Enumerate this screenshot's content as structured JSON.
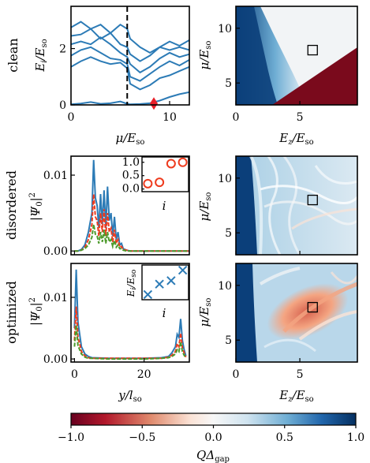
{
  "colors": {
    "blue": "#2c7bb6",
    "red": "#ee3b1e",
    "green": "#4c9a2a",
    "cmap_neg": "#67001f",
    "cmap_mid": "#f7f7f7",
    "cmap_pos": "#053061"
  },
  "rows": {
    "clean": "clean",
    "disordered": "disordered",
    "optimized": "optimized"
  },
  "chart_data": [
    {
      "id": "clean-spectrum",
      "type": "line",
      "xlabel": "μ/E_so",
      "ylabel": "E_i/E_so",
      "xlim": [
        0,
        12
      ],
      "ylim": [
        0,
        3.5
      ],
      "xticks": [
        "0",
        "10"
      ],
      "yticks": [
        "0",
        "2"
      ],
      "vline_x": 5.7,
      "marker_diamond": {
        "x": 8.4,
        "y": 0.05
      },
      "x": [
        0,
        1,
        2,
        3,
        4,
        5,
        5.7,
        6,
        7,
        8,
        9,
        10,
        11,
        12
      ],
      "series": [
        {
          "values": [
            2.75,
            2.95,
            2.7,
            2.35,
            2.55,
            2.85,
            2.7,
            2.35,
            2.05,
            1.85,
            2.05,
            2.25,
            2.1,
            2.3
          ]
        },
        {
          "values": [
            2.45,
            2.5,
            2.7,
            2.85,
            2.55,
            2.15,
            2.05,
            1.8,
            1.55,
            1.75,
            2.05,
            1.95,
            2.05,
            1.95
          ]
        },
        {
          "values": [
            2.15,
            2.25,
            2.15,
            2.4,
            2.15,
            1.85,
            1.7,
            1.45,
            1.15,
            1.35,
            1.65,
            1.85,
            1.7,
            1.8
          ]
        },
        {
          "values": [
            1.75,
            1.95,
            2.05,
            1.85,
            1.65,
            1.6,
            1.45,
            1.0,
            0.85,
            1.1,
            1.35,
            1.55,
            1.4,
            1.6
          ]
        },
        {
          "values": [
            1.35,
            1.55,
            1.7,
            1.55,
            1.45,
            1.5,
            1.3,
            0.75,
            0.55,
            0.7,
            0.95,
            1.05,
            1.2,
            1.35
          ]
        },
        {
          "values": [
            0.02,
            0.05,
            0.1,
            0.04,
            0.06,
            0.12,
            0.04,
            0.02,
            0.03,
            0.06,
            0.15,
            0.28,
            0.38,
            0.45
          ]
        }
      ]
    },
    {
      "id": "clean-map",
      "type": "heatmap",
      "xlabel": "E_z/E_so",
      "ylabel": "μ/E_so",
      "xlim": [
        0,
        9.5
      ],
      "ylim": [
        3,
        12
      ],
      "xticks": [
        "0",
        "5"
      ],
      "yticks": [
        "5",
        "10"
      ],
      "square_marker": {
        "x": 6,
        "y": 8
      }
    },
    {
      "id": "disordered-wavefunction",
      "type": "line",
      "ylabel": "|Ψ_0|²",
      "xlim": [
        -1,
        33
      ],
      "ylim": [
        -0.0005,
        0.0125
      ],
      "yticks": [
        "0.00",
        "0.01"
      ],
      "x": [
        0,
        1,
        2,
        3,
        4,
        5,
        5.5,
        6,
        6.5,
        7,
        7.5,
        8,
        8.5,
        9,
        9.5,
        10,
        10.5,
        11,
        11.5,
        12,
        12.5,
        13,
        13.5,
        14,
        15,
        16,
        17,
        18,
        20,
        25,
        30,
        33
      ],
      "series": [
        {
          "values": [
            0,
            0,
            0.0002,
            0.0008,
            0.0025,
            0.005,
            0.012,
            0.007,
            0.006,
            0.003,
            0.0075,
            0.0035,
            0.008,
            0.003,
            0.0085,
            0.004,
            0.005,
            0.002,
            0.0045,
            0.0015,
            0.0025,
            0.0008,
            0.001,
            0.0003,
            0.0001,
            0,
            0,
            0,
            0,
            0,
            0,
            0
          ]
        },
        {
          "values": [
            0,
            0,
            0.0001,
            0.0005,
            0.0015,
            0.0035,
            0.0075,
            0.0045,
            0.004,
            0.002,
            0.005,
            0.0025,
            0.0055,
            0.002,
            0.005,
            0.0025,
            0.003,
            0.0012,
            0.0028,
            0.001,
            0.0015,
            0.0005,
            0.0006,
            0.0002,
            0.0001,
            0,
            0,
            0,
            0,
            0,
            0,
            0
          ]
        },
        {
          "values": [
            0,
            0,
            0.0001,
            0.0003,
            0.0008,
            0.0018,
            0.0035,
            0.0022,
            0.002,
            0.001,
            0.0025,
            0.0012,
            0.0028,
            0.001,
            0.0025,
            0.0012,
            0.0015,
            0.0006,
            0.0014,
            0.0005,
            0.0008,
            0.0003,
            0.0003,
            0.0001,
            0,
            0,
            0,
            0,
            0,
            0,
            0,
            0
          ]
        }
      ],
      "inset": {
        "xlabel": "i",
        "yticks": [
          "0.0",
          "0.5",
          "1.0"
        ],
        "ylim": [
          -0.1,
          1.2
        ],
        "points": [
          {
            "x": 1,
            "y": 0.2
          },
          {
            "x": 2,
            "y": 0.25
          },
          {
            "x": 3,
            "y": 0.95
          },
          {
            "x": 4,
            "y": 1.0
          }
        ]
      }
    },
    {
      "id": "disordered-map",
      "type": "heatmap",
      "ylabel": "μ/E_so",
      "xlim": [
        0,
        9.5
      ],
      "ylim": [
        3,
        12
      ],
      "yticks": [
        "5",
        "10"
      ],
      "square_marker": {
        "x": 6,
        "y": 8
      }
    },
    {
      "id": "optimized-wavefunction",
      "type": "line",
      "xlabel": "y/l_so",
      "ylabel": "|Ψ_0|²",
      "xlim": [
        -1,
        33
      ],
      "ylim": [
        -0.0005,
        0.0155
      ],
      "xticks": [
        "0",
        "20"
      ],
      "yticks": [
        "0.00",
        "0.01"
      ],
      "x": [
        0,
        0.5,
        1,
        1.5,
        2,
        3,
        4,
        5,
        10,
        15,
        20,
        25,
        27,
        28,
        29,
        29.5,
        30,
        30.5,
        31,
        31.5,
        32
      ],
      "series": [
        {
          "values": [
            0.005,
            0.0145,
            0.006,
            0.004,
            0.002,
            0.0008,
            0.0004,
            0.0002,
            0.0001,
            0.0001,
            0.0001,
            0.0002,
            0.0004,
            0.001,
            0.002,
            0.004,
            0.0035,
            0.0065,
            0.003,
            0.0015,
            0.0005
          ]
        },
        {
          "values": [
            0.003,
            0.0085,
            0.0035,
            0.0025,
            0.0012,
            0.0005,
            0.0002,
            0.0001,
            0.0001,
            0.0001,
            0.0001,
            0.0001,
            0.0003,
            0.0006,
            0.0012,
            0.0025,
            0.002,
            0.0042,
            0.0018,
            0.001,
            0.0003
          ]
        },
        {
          "values": [
            0.002,
            0.0055,
            0.0022,
            0.0015,
            0.0008,
            0.0003,
            0.0001,
            0.0001,
            0,
            0,
            0,
            0.0001,
            0.0002,
            0.0004,
            0.0008,
            0.0015,
            0.0012,
            0.0028,
            0.0012,
            0.0006,
            0.0002
          ]
        }
      ],
      "inset": {
        "xlabel": "i",
        "ylabel": "E_i/E_so",
        "points": [
          {
            "x": 1,
            "y": 0.15
          },
          {
            "x": 2,
            "y": 0.45
          },
          {
            "x": 3,
            "y": 0.55
          },
          {
            "x": 4,
            "y": 0.85
          }
        ]
      }
    },
    {
      "id": "optimized-map",
      "type": "heatmap",
      "xlabel": "E_z/E_so",
      "ylabel": "μ/E_so",
      "xlim": [
        0,
        9.5
      ],
      "ylim": [
        3,
        12
      ],
      "xticks": [
        "0",
        "5"
      ],
      "yticks": [
        "5",
        "10"
      ],
      "square_marker": {
        "x": 6,
        "y": 8
      }
    },
    {
      "id": "colorbar",
      "type": "heatmap",
      "xlabel": "QΔ_gap",
      "range": [
        -1.0,
        1.0
      ],
      "ticks": [
        "−1.0",
        "−0.5",
        "0.0",
        "0.5",
        "1.0"
      ]
    }
  ]
}
